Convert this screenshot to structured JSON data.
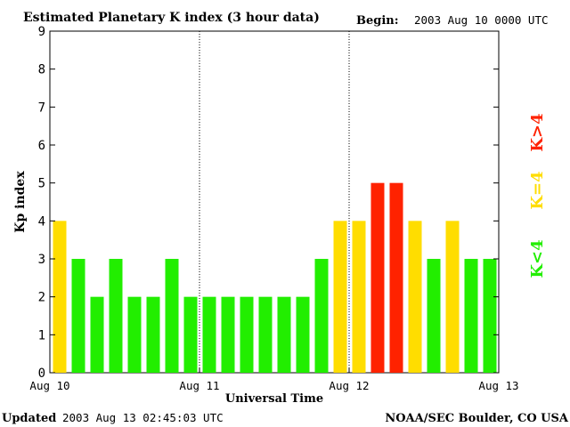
{
  "header": {
    "title": "Estimated Planetary K index (3 hour data)",
    "begin_label": "Begin:",
    "begin_value": "2003 Aug 10 0000 UTC"
  },
  "footer": {
    "updated_label": "Updated",
    "updated_value": "2003 Aug 13 02:45:03 UTC",
    "source": "NOAA/SEC Boulder, CO USA"
  },
  "legend": {
    "below": "K<4",
    "equal": "K=4",
    "above": "K>4"
  },
  "colors": {
    "below": "#22ee00",
    "equal": "#ffdd00",
    "above": "#ff2200"
  },
  "chart_data": {
    "type": "bar",
    "title": "Estimated Planetary K index (3 hour data)",
    "xlabel": "Universal Time",
    "ylabel": "Kp index",
    "ylim": [
      0,
      9
    ],
    "yticks": [
      "0",
      "1",
      "2",
      "3",
      "4",
      "5",
      "6",
      "7",
      "8",
      "9"
    ],
    "xticks": [
      "Aug 10",
      "Aug 11",
      "Aug 12",
      "Aug 13"
    ],
    "interval_hours": 3,
    "values": [
      4,
      3,
      2,
      3,
      2,
      2,
      3,
      2,
      2,
      2,
      2,
      2,
      2,
      2,
      3,
      4,
      4,
      5,
      5,
      4,
      3,
      4,
      3,
      3
    ],
    "day_separators": [
      "Aug 11",
      "Aug 12"
    ],
    "grid": false
  }
}
